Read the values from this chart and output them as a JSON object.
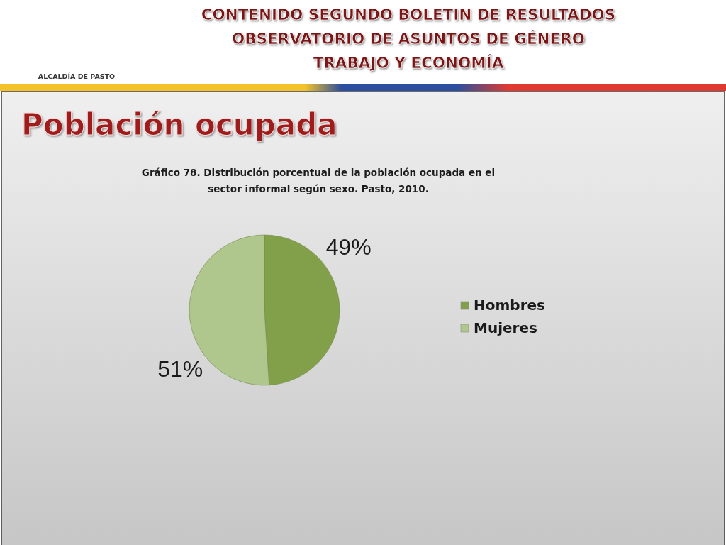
{
  "chart_data": {
    "type": "pie",
    "title": "Gráfico 78. Distribución porcentual de la población ocupada en el sector informal según sexo. Pasto, 2010.",
    "subtitle": "Población ocupada",
    "annotations": [
      "CONTENIDO SEGUNDO BOLETIN DE RESULTADOS",
      "OBSERVATORIO DE ASUNTOS DE GÉNERO",
      "TRABAJO Y ECONOMÍA",
      "ALCALDÍA DE PASTO"
    ],
    "categories": [
      "Hombres",
      "Mujeres"
    ],
    "values": [
      49,
      51
    ],
    "colors": [
      "#82a04a",
      "#afc68c"
    ],
    "value_labels": [
      "49%",
      "51%"
    ],
    "legend": "right"
  }
}
